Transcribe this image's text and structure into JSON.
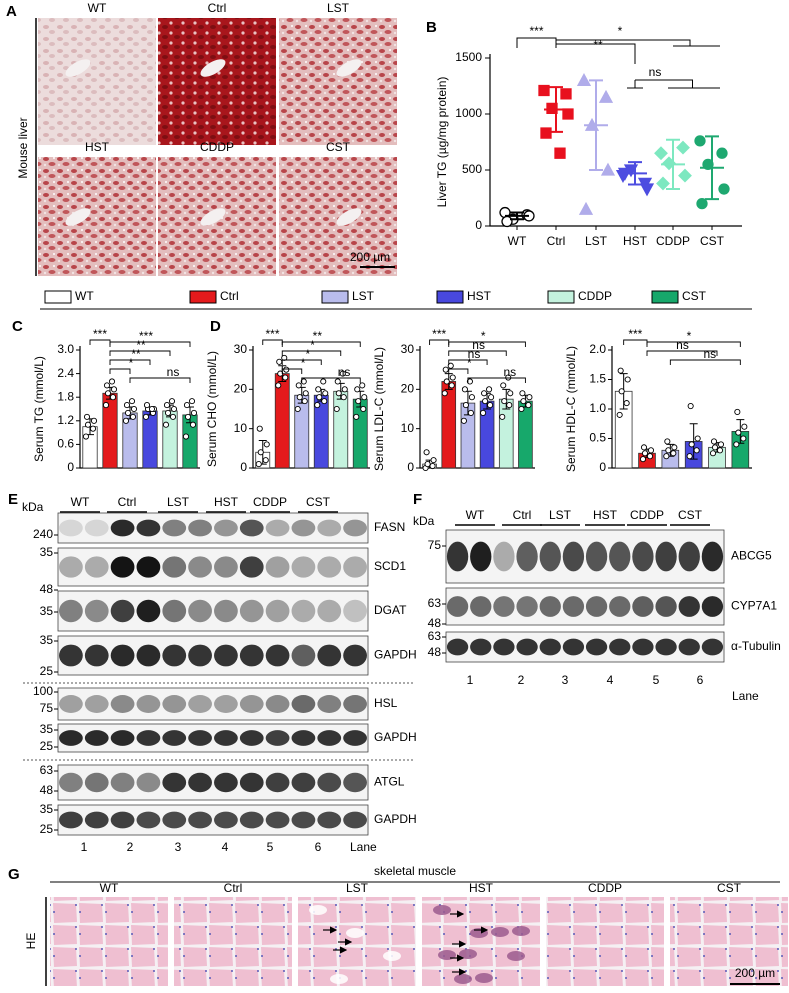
{
  "panel_a": {
    "letter": "A",
    "side_label": "Mouse liver",
    "groups": [
      "WT",
      "Ctrl",
      "LST",
      "HST",
      "CDDP",
      "CST"
    ],
    "scale_bar": "200 µm"
  },
  "legend": {
    "names": [
      "WT",
      "Ctrl",
      "LST",
      "HST",
      "CDDP",
      "CST"
    ],
    "colors": [
      "#ffffff",
      "#e41a1c",
      "#b9bcec",
      "#4848de",
      "#c4f2de",
      "#17a86b"
    ]
  },
  "chart_data": [
    {
      "type": "scatter",
      "panel_label": "B",
      "ylabel": "Liver TG (µg/mg protein)",
      "categories": [
        "WT",
        "Ctrl",
        "LST",
        "HST",
        "CDDP",
        "CST"
      ],
      "series": [
        {
          "color": "#ffffff",
          "values": [
            120,
            100,
            60,
            90,
            40
          ],
          "mean": 90,
          "sd": 30
        },
        {
          "color": "#e8101e",
          "values": [
            1210,
            1180,
            1050,
            1000,
            830,
            650
          ],
          "mean": 1040,
          "sd": 200
        },
        {
          "color": "#b0acea",
          "values": [
            1300,
            1150,
            900,
            500,
            150
          ],
          "mean": 900,
          "sd": 400
        },
        {
          "color": "#4d4de0",
          "values": [
            450,
            380,
            500,
            330,
            470
          ],
          "mean": 470,
          "sd": 100
        },
        {
          "color": "#7de8c0",
          "values": [
            650,
            700,
            560,
            450,
            380
          ],
          "mean": 550,
          "sd": 220
        },
        {
          "color": "#1ea870",
          "values": [
            760,
            650,
            550,
            330,
            200
          ],
          "mean": 520,
          "sd": 280
        }
      ],
      "ylim": [
        0,
        1500
      ],
      "yticks": [
        0,
        500,
        1000,
        1500
      ],
      "annotations": [
        "***",
        "**",
        "*",
        "ns"
      ]
    },
    {
      "type": "bar",
      "panel_label": "C",
      "ylabel": "Serum TG (mmol/L)",
      "values": [
        1.05,
        1.9,
        1.4,
        1.45,
        1.45,
        1.35
      ],
      "errors": [
        0.2,
        0.15,
        0.15,
        0.1,
        0.15,
        0.2
      ],
      "points": [
        [
          0.8,
          1.0,
          1.1,
          1.2,
          1.3
        ],
        [
          1.6,
          1.8,
          1.9,
          2.0,
          2.1,
          2.2
        ],
        [
          1.2,
          1.3,
          1.4,
          1.5,
          1.6,
          1.7
        ],
        [
          1.3,
          1.4,
          1.5,
          1.5,
          1.6,
          1.5
        ],
        [
          1.1,
          1.3,
          1.4,
          1.5,
          1.6,
          1.7
        ],
        [
          0.8,
          1.1,
          1.3,
          1.4,
          1.6,
          1.7
        ]
      ],
      "ylim": [
        0,
        3
      ],
      "yticks": [
        0,
        0.6,
        1.2,
        1.8,
        2.4,
        {
          "value": 3,
          "label": "3.0"
        }
      ],
      "annotations": [
        "***",
        "***",
        "**",
        "**",
        "*",
        "ns"
      ]
    },
    {
      "type": "bar",
      "panel_label": "D",
      "ylabel": "Serum CHO (mmol/L)",
      "values": [
        4,
        24,
        18.5,
        18.5,
        19.5,
        17.5
      ],
      "errors": [
        3,
        2,
        2,
        1.5,
        2,
        2
      ],
      "points": [
        [
          1,
          2,
          4,
          6,
          10
        ],
        [
          21,
          23,
          24,
          25,
          27,
          28
        ],
        [
          15,
          17,
          18,
          19,
          21,
          22
        ],
        [
          16,
          17,
          18,
          19,
          20,
          22
        ],
        [
          15,
          18,
          19,
          20,
          22,
          24
        ],
        [
          13,
          15,
          17,
          18,
          20,
          21
        ]
      ],
      "ylim": [
        0,
        30
      ],
      "yticks": [
        0,
        10,
        20,
        30
      ],
      "annotations": [
        "***",
        "**",
        "*",
        "*",
        "*",
        "ns"
      ]
    },
    {
      "type": "bar",
      "ylabel": "Serum LDL-C (mmol/L)",
      "values": [
        1,
        22,
        16.5,
        17,
        17.5,
        17
      ],
      "errors": [
        1,
        2,
        3,
        2,
        2.5,
        1.5
      ],
      "points": [
        [
          0,
          0.5,
          1,
          2,
          4
        ],
        [
          19,
          21,
          22,
          23,
          25,
          26
        ],
        [
          12,
          14,
          16,
          18,
          20,
          22
        ],
        [
          14,
          16,
          17,
          18,
          19,
          20
        ],
        [
          13,
          16,
          17,
          19,
          21,
          23
        ],
        [
          15,
          16,
          17,
          18,
          19
        ]
      ],
      "ylim": [
        0,
        30
      ],
      "yticks": [
        0,
        10,
        20,
        30
      ],
      "annotations": [
        "***",
        "*",
        "ns",
        "ns",
        "*",
        "ns"
      ]
    },
    {
      "type": "bar",
      "ylabel": "Serum HDL-C (mmol/L)",
      "values": [
        1.3,
        0.25,
        0.3,
        0.45,
        0.35,
        0.62
      ],
      "errors": [
        0.3,
        0.07,
        0.1,
        0.3,
        0.08,
        0.2
      ],
      "points": [
        [
          0.9,
          1.1,
          1.3,
          1.5,
          1.65
        ],
        [
          0.15,
          0.2,
          0.25,
          0.3,
          0.35
        ],
        [
          0.2,
          0.25,
          0.3,
          0.35,
          0.45
        ],
        [
          0.2,
          0.3,
          0.4,
          0.5,
          1.05
        ],
        [
          0.25,
          0.3,
          0.35,
          0.4,
          0.45
        ],
        [
          0.4,
          0.5,
          0.6,
          0.7,
          0.95
        ]
      ],
      "ylim": [
        0,
        2
      ],
      "yticks": [
        0,
        0.5,
        {
          "value": 1,
          "label": "1.0"
        },
        1.5,
        {
          "value": 2,
          "label": "2.0"
        }
      ],
      "annotations": [
        "***",
        "*",
        "ns",
        "ns"
      ]
    }
  ],
  "panel_e": {
    "letter": "E",
    "unit": "kDa",
    "groups": [
      "WT",
      "Ctrl",
      "LST",
      "HST",
      "CDDP",
      "CST"
    ],
    "markers": [
      "240",
      "35",
      "48",
      "35",
      "35",
      "25",
      "100",
      "75",
      "35",
      "25",
      "63",
      "48",
      "35",
      "25"
    ],
    "proteins": [
      "FASN",
      "SCD1",
      "DGAT",
      "GAPDH",
      "HSL",
      "GAPDH",
      "ATGL",
      "GAPDH"
    ],
    "lanes": [
      "1",
      "2",
      "3",
      "4",
      "5",
      "6"
    ],
    "lane_title": "Lane"
  },
  "panel_f": {
    "letter": "F",
    "unit": "kDa",
    "groups": [
      "WT",
      "Ctrl",
      "LST",
      "HST",
      "CDDP",
      "CST"
    ],
    "markers": [
      "75",
      "63",
      "48",
      "63",
      "48"
    ],
    "proteins": [
      "ABCG5",
      "CYP7A1",
      "α-Tubulin"
    ],
    "lanes": [
      "1",
      "2",
      "3",
      "4",
      "5",
      "6"
    ],
    "lane_title": "Lane"
  },
  "panel_g": {
    "letter": "G",
    "title": "skeletal muscle",
    "side_label": "HE",
    "groups": [
      "WT",
      "Ctrl",
      "LST",
      "HST",
      "CDDP",
      "CST"
    ],
    "scale_bar": "200 µm"
  }
}
